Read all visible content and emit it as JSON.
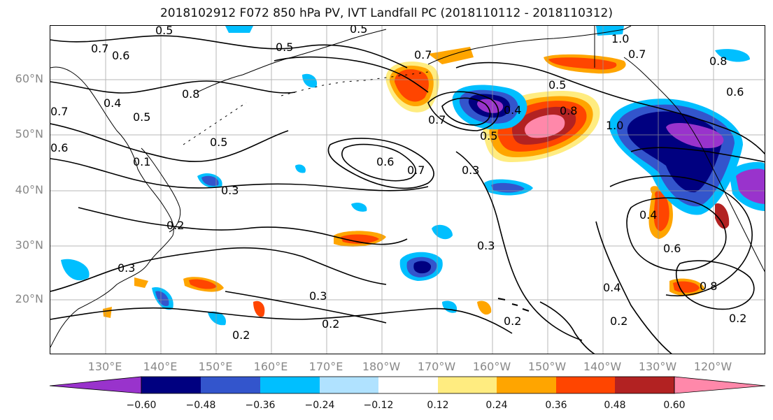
{
  "title": "2018102912 F072 850 hPa PV, IVT Landfall PC (2018110112 - 2018110312)",
  "colors": {
    "neg_0_60": "#9933cc",
    "neg_0_48": "#000080",
    "neg_0_36": "#3355cc",
    "neg_0_24": "#00bfff",
    "neg_0_12": "#b0e2ff",
    "neutral": "#ffffff",
    "pos_0_12": "#ffec80",
    "pos_0_24": "#ffa500",
    "pos_0_36": "#ff4500",
    "pos_0_48": "#b22222",
    "pos_0_60": "#ff88aa"
  },
  "map": {
    "lat_labels": [
      {
        "text": "60°N",
        "lat": 60
      },
      {
        "text": "50°N",
        "lat": 50
      },
      {
        "text": "40°N",
        "lat": 40
      },
      {
        "text": "30°N",
        "lat": 30
      },
      {
        "text": "20°N",
        "lat": 20
      }
    ],
    "lon_labels": [
      {
        "text": "130°E",
        "lon": 130
      },
      {
        "text": "140°E",
        "lon": 140
      },
      {
        "text": "150°E",
        "lon": 150
      },
      {
        "text": "160°E",
        "lon": 160
      },
      {
        "text": "170°E",
        "lon": 170
      },
      {
        "text": "180°W",
        "lon": 180
      },
      {
        "text": "170°W",
        "lon": 190
      },
      {
        "text": "160°W",
        "lon": 200
      },
      {
        "text": "150°W",
        "lon": 210
      },
      {
        "text": "140°W",
        "lon": 220
      },
      {
        "text": "130°W",
        "lon": 230
      },
      {
        "text": "120°W",
        "lon": 240
      }
    ],
    "contour_labels": [
      "0.5",
      "0.5",
      "0.6",
      "0.7",
      "0.8",
      "0.4",
      "0.5",
      "0.5",
      "0.6",
      "0.7",
      "0.3",
      "0.2",
      "0.3",
      "0.3",
      "0.3",
      "0.2",
      "0.2",
      "0.2",
      "0.7",
      "0.5",
      "0.4",
      "0.8",
      "0.6",
      "0.5",
      "0.3",
      "1.0",
      "0.7",
      "1.0",
      "0.8",
      "0.6",
      "0.4",
      "0.6",
      "0.8",
      "0.4",
      "0.2",
      "0.2",
      "0.7",
      "0.1",
      "0.5",
      "0.7"
    ]
  },
  "colorbar": {
    "ticks": [
      "−0.60",
      "−0.48",
      "−0.36",
      "−0.24",
      "−0.12",
      "0.12",
      "0.24",
      "0.36",
      "0.48",
      "0.60"
    ]
  }
}
